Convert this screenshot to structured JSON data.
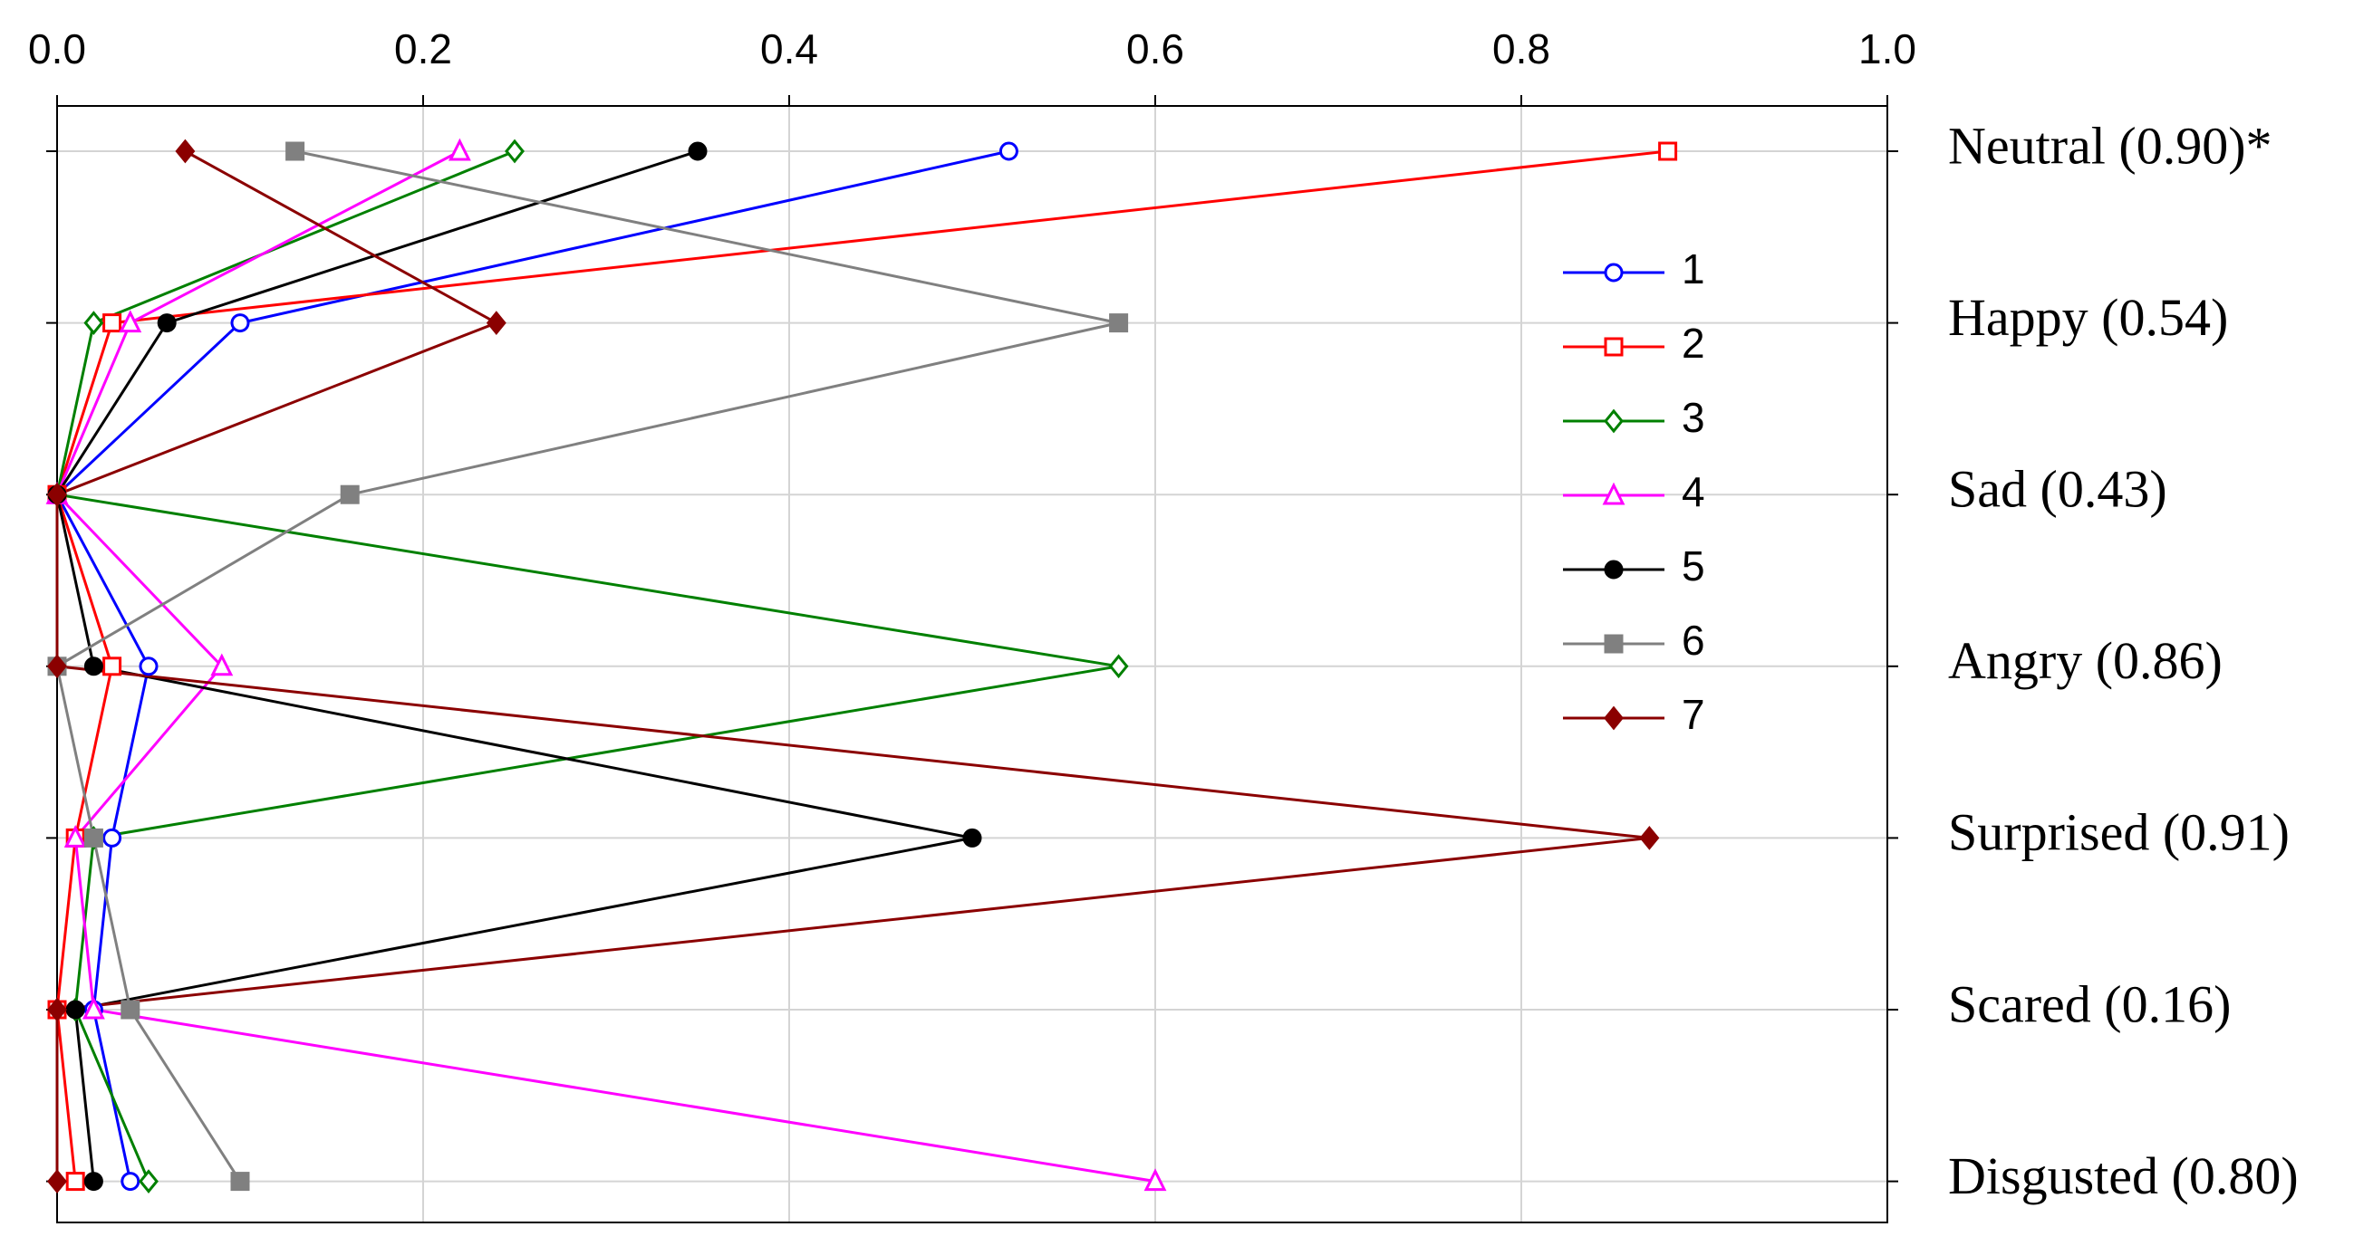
{
  "chart_data": {
    "type": "line",
    "orientation": "horizontal",
    "categories": [
      "Neutral (0.90)*",
      "Happy (0.54)",
      "Sad (0.43)",
      "Angry (0.86)",
      "Surprised (0.91)",
      "Scared (0.16)",
      "Disgusted (0.80)"
    ],
    "xlim": [
      0,
      1
    ],
    "xticks": [
      {
        "value": 0,
        "label": "0.0"
      },
      0.2,
      0.4,
      0.6,
      0.8,
      {
        "value": 1,
        "label": "1.0"
      }
    ],
    "grid": true,
    "series": [
      {
        "name": "1",
        "color": "#0000ff",
        "marker": "circle",
        "filled": false,
        "values": [
          0.52,
          0.1,
          0.0,
          0.05,
          0.03,
          0.02,
          0.04
        ]
      },
      {
        "name": "2",
        "color": "#ff0000",
        "marker": "square",
        "filled": false,
        "values": [
          0.88,
          0.03,
          0.0,
          0.03,
          0.01,
          0.0,
          0.01
        ]
      },
      {
        "name": "3",
        "color": "#008000",
        "marker": "diamond",
        "filled": false,
        "values": [
          0.25,
          0.02,
          0.0,
          0.58,
          0.02,
          0.01,
          0.05
        ]
      },
      {
        "name": "4",
        "color": "#ff00ff",
        "marker": "triangle",
        "filled": false,
        "values": [
          0.22,
          0.04,
          0.0,
          0.09,
          0.01,
          0.02,
          0.6
        ]
      },
      {
        "name": "5",
        "color": "#000000",
        "marker": "circle",
        "filled": true,
        "values": [
          0.35,
          0.06,
          0.0,
          0.02,
          0.5,
          0.01,
          0.02
        ]
      },
      {
        "name": "6",
        "color": "#808080",
        "marker": "square",
        "filled": true,
        "values": [
          0.13,
          0.58,
          0.16,
          0.0,
          0.02,
          0.04,
          0.1
        ]
      },
      {
        "name": "7",
        "color": "#8b0000",
        "marker": "diamond",
        "filled": true,
        "values": [
          0.07,
          0.24,
          0.0,
          0.0,
          0.87,
          0.0,
          0.0
        ]
      }
    ]
  }
}
